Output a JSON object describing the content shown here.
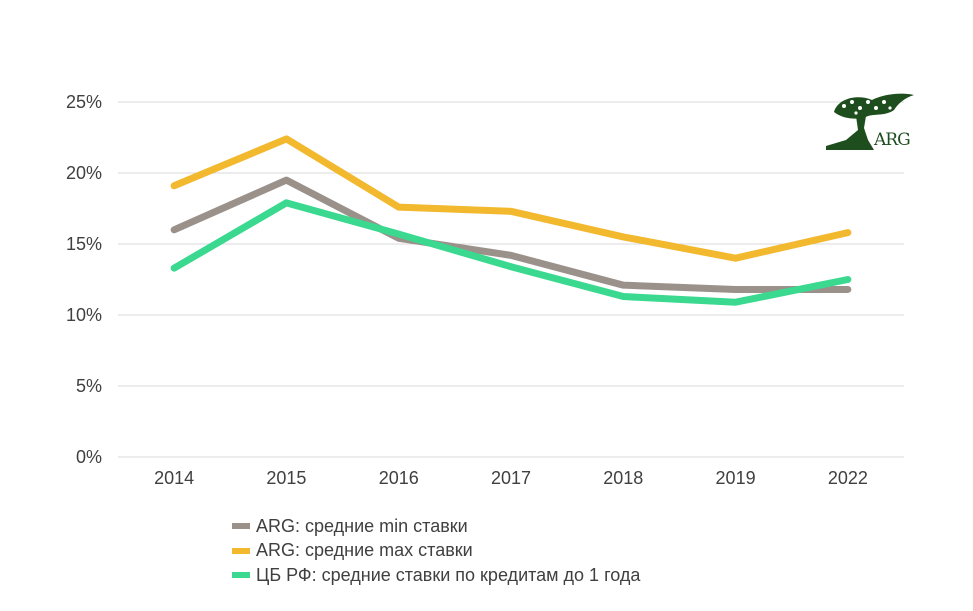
{
  "chart_data": {
    "type": "line",
    "title": "",
    "xlabel": "",
    "ylabel": "",
    "categories": [
      "2014",
      "2015",
      "2016",
      "2017",
      "2018",
      "2019",
      "2022"
    ],
    "ylim": [
      0,
      25
    ],
    "yticks": [
      0,
      5,
      10,
      15,
      20,
      25
    ],
    "ytick_labels": [
      "0%",
      "5%",
      "10%",
      "15%",
      "20%",
      "25%"
    ],
    "grid": true,
    "legend_position": "bottom",
    "series": [
      {
        "name": "ARG: средние min ставки",
        "color": "#9b918b",
        "values": [
          16.0,
          19.5,
          15.4,
          14.2,
          12.1,
          11.8,
          11.8
        ]
      },
      {
        "name": "ARG: средние max ставки",
        "color": "#f2b82e",
        "values": [
          19.1,
          22.4,
          17.6,
          17.3,
          15.5,
          14.0,
          15.8
        ]
      },
      {
        "name": "ЦБ РФ: средние ставки по кредитам до 1 года",
        "color": "#3ad98f",
        "values": [
          13.3,
          17.9,
          15.7,
          13.4,
          11.3,
          10.9,
          12.5
        ]
      }
    ]
  },
  "logo": {
    "text": "ARG",
    "color": "#1e4d1e"
  }
}
